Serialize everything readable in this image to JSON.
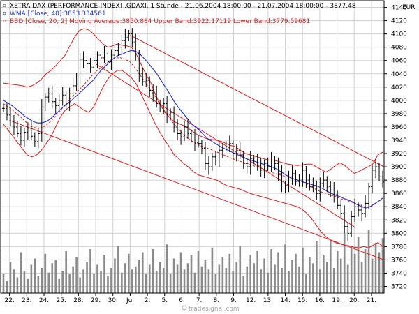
{
  "legend": {
    "line1": "XETRA DAX (PERFORMANCE-INDEX) ,GDAXI, 1 Stunde - 21.06.2004 18:00:00 - 21.07.2004 18:00:00 - 3877.48",
    "line2": "WMA [Close, 40]:3853.334561",
    "line3": "BBD [Close, 20, 2] Moving Average:3850.884 Upper Band:3922.17119 Lower Band:3779.59681"
  },
  "currency": "EUR",
  "watermark": "tradesignal.com",
  "colors": {
    "price": "#000000",
    "wma": "#1f2fd1",
    "bollinger": "#e01a1a",
    "channel": "#e01a1a",
    "volume": "#8a8a8a",
    "grid": "#d0d0d0"
  },
  "chart_data": {
    "type": "line",
    "title": "XETRA DAX (PERFORMANCE-INDEX) ,GDAXI, 1 Stunde - 21.06.2004 18:00:00 - 21.07.2004 18:00:00 - 3877.48",
    "x_ticks": [
      "22.",
      "23.",
      "24.",
      "25.",
      "28.",
      "29.",
      "30.",
      "Jul",
      "2.",
      "5.",
      "6.",
      "7.",
      "8.",
      "9.",
      "12.",
      "13.",
      "14.",
      "15.",
      "16.",
      "19.",
      "20.",
      "21."
    ],
    "y_ticks": [
      3720,
      3740,
      3760,
      3780,
      3800,
      3820,
      3840,
      3860,
      3880,
      3900,
      3920,
      3940,
      3960,
      3980,
      4000,
      4020,
      4040,
      4060,
      4080,
      4100,
      4120,
      4140
    ],
    "ylim": [
      3710,
      4150
    ],
    "grid": true,
    "series": [
      {
        "name": "XETRA DAX (PERFORMANCE-INDEX) ,GDAXI",
        "note_type": "ohlc-hourly",
        "values": [
          3988,
          3978,
          3972,
          3960,
          3950,
          3940,
          3952,
          3958,
          3946,
          3938,
          3950,
          3990,
          4005,
          4010,
          3998,
          3992,
          4000,
          4008,
          3996,
          4010,
          4022,
          4035,
          4062,
          4060,
          4055,
          4050,
          4060,
          4068,
          4064,
          4070,
          4058,
          4068,
          4075,
          4080,
          4090,
          4095,
          4100,
          4088,
          4070,
          4040,
          4028,
          4030,
          4015,
          4010,
          3995,
          3990,
          3995,
          3978,
          3982,
          3960,
          3950,
          3945,
          3960,
          3950,
          3948,
          3936,
          3935,
          3928,
          3905,
          3900,
          3915,
          3910,
          3925,
          3930,
          3930,
          3935,
          3920,
          3925,
          3918,
          3905,
          3900,
          3912,
          3910,
          3902,
          3895,
          3905,
          3900,
          3910,
          3905,
          3890,
          3868,
          3872,
          3885,
          3890,
          3878,
          3880,
          3895,
          3880,
          3870,
          3872,
          3860,
          3875,
          3880,
          3870,
          3865,
          3858,
          3842,
          3830,
          3810,
          3800,
          3825,
          3840,
          3835,
          3830,
          3845,
          3870,
          3895,
          3900,
          3885,
          3877
        ]
      },
      {
        "name": "WMA [Close, 40]",
        "values": [
          4000,
          3996,
          3992,
          3987,
          3982,
          3976,
          3972,
          3968,
          3966,
          3966,
          3968,
          3972,
          3978,
          3984,
          3990,
          3995,
          4000,
          4006,
          4012,
          4018,
          4024,
          4030,
          4038,
          4046,
          4052,
          4058,
          4064,
          4068,
          4070,
          4073,
          4075,
          4074,
          4070,
          4063,
          4056,
          4048,
          4040,
          4030,
          4020,
          4010,
          3999,
          3990,
          3982,
          3974,
          3966,
          3960,
          3955,
          3948,
          3942,
          3938,
          3934,
          3930,
          3927,
          3924,
          3921,
          3918,
          3915,
          3912,
          3910,
          3908,
          3906,
          3904,
          3902,
          3900,
          3897,
          3893,
          3889,
          3885,
          3882,
          3880,
          3878,
          3876,
          3874,
          3872,
          3870,
          3867,
          3863,
          3860,
          3857,
          3855,
          3852,
          3850,
          3847,
          3843,
          3840,
          3838,
          3840,
          3844,
          3848,
          3853
        ]
      },
      {
        "name": "BBD Upper Band",
        "values": [
          4026,
          4025,
          4024,
          4023,
          4022,
          4020,
          4022,
          4026,
          4032,
          4040,
          4045,
          4052,
          4060,
          4068,
          4082,
          4095,
          4105,
          4108,
          4106,
          4100,
          4092,
          4085,
          4080,
          4082,
          4085,
          4083,
          4082,
          4080,
          4070,
          4055,
          4040,
          4028,
          4010,
          3995,
          3982,
          3975,
          3968,
          3965,
          3962,
          3958,
          3953,
          3948,
          3945,
          3942,
          3941,
          3940,
          3938,
          3935,
          3932,
          3930,
          3925,
          3920,
          3918,
          3916,
          3914,
          3912,
          3910,
          3910,
          3908,
          3906,
          3904,
          3903,
          3902,
          3903,
          3904,
          3904,
          3900,
          3896,
          3892,
          3896,
          3902,
          3906,
          3902,
          3896,
          3890,
          3893,
          3897,
          3900,
          3905,
          3918,
          3922
        ]
      },
      {
        "name": "BBD Moving Average",
        "values": [
          3995,
          3990,
          3985,
          3979,
          3973,
          3966,
          3961,
          3958,
          3958,
          3962,
          3968,
          3975,
          3983,
          3992,
          4000,
          4008,
          4015,
          4022,
          4030,
          4038,
          4045,
          4050,
          4056,
          4061,
          4064,
          4064,
          4062,
          4058,
          4050,
          4040,
          4030,
          4020,
          4010,
          3999,
          3988,
          3978,
          3968,
          3960,
          3952,
          3945,
          3940,
          3935,
          3932,
          3929,
          3927,
          3924,
          3921,
          3918,
          3915,
          3912,
          3910,
          3907,
          3905,
          3903,
          3900,
          3898,
          3895,
          3892,
          3890,
          3888,
          3886,
          3884,
          3882,
          3880,
          3877,
          3873,
          3869,
          3865,
          3862,
          3860,
          3857,
          3855,
          3852,
          3850,
          3848,
          3845,
          3843,
          3840,
          3839,
          3842,
          3848,
          3851
        ]
      },
      {
        "name": "BBD Lower Band",
        "values": [
          3964,
          3955,
          3946,
          3936,
          3927,
          3918,
          3915,
          3918,
          3925,
          3935,
          3945,
          3960,
          3975,
          3985,
          3990,
          3995,
          3990,
          3985,
          3982,
          3990,
          4005,
          4020,
          4032,
          4040,
          4045,
          4045,
          4040,
          4034,
          4025,
          4010,
          3995,
          3980,
          3965,
          3952,
          3940,
          3930,
          3918,
          3912,
          3905,
          3900,
          3893,
          3888,
          3886,
          3884,
          3882,
          3880,
          3876,
          3872,
          3870,
          3868,
          3866,
          3863,
          3860,
          3858,
          3856,
          3854,
          3852,
          3850,
          3848,
          3846,
          3844,
          3842,
          3840,
          3836,
          3830,
          3822,
          3812,
          3802,
          3795,
          3790,
          3786,
          3784,
          3782,
          3781,
          3779,
          3778,
          3780,
          3778,
          3782,
          3786,
          3780
        ]
      },
      {
        "name": "Volume",
        "values": [
          12,
          8,
          20,
          15,
          10,
          26,
          14,
          9,
          18,
          22,
          11,
          16,
          25,
          13,
          19,
          21,
          9,
          14,
          27,
          12,
          17,
          23,
          10,
          15,
          20,
          28,
          12,
          18,
          14,
          24,
          11,
          16,
          22,
          30,
          13,
          19,
          25,
          15,
          17,
          21,
          26,
          12,
          18,
          28,
          14,
          20,
          16,
          31,
          12,
          22,
          18,
          26,
          15,
          19,
          24,
          13,
          27,
          17,
          21,
          15,
          29,
          12,
          18,
          23,
          16,
          25,
          14,
          20,
          30,
          11,
          17,
          24,
          19,
          27,
          15,
          22,
          13,
          28,
          18,
          26,
          16,
          31,
          14,
          21,
          25,
          17,
          29,
          12,
          23,
          19,
          33,
          15,
          24,
          20,
          34,
          16,
          27,
          22,
          38,
          18,
          30,
          25,
          36,
          20,
          28,
          40,
          22,
          32,
          26,
          35
        ]
      }
    ],
    "channel_lines": [
      {
        "name": "channel-upper",
        "from": {
          "x": "Jul",
          "y": 4098
        },
        "to": {
          "x": "21.",
          "y": 3900
        }
      },
      {
        "name": "channel-lower",
        "from": {
          "x": "22.",
          "y": 3970
        },
        "to": {
          "x": "21.",
          "y": 3760
        }
      },
      {
        "name": "channel-inner",
        "from": {
          "x": "29.",
          "y": 4055
        },
        "to": {
          "x": "20.",
          "y": 3810
        }
      }
    ]
  }
}
